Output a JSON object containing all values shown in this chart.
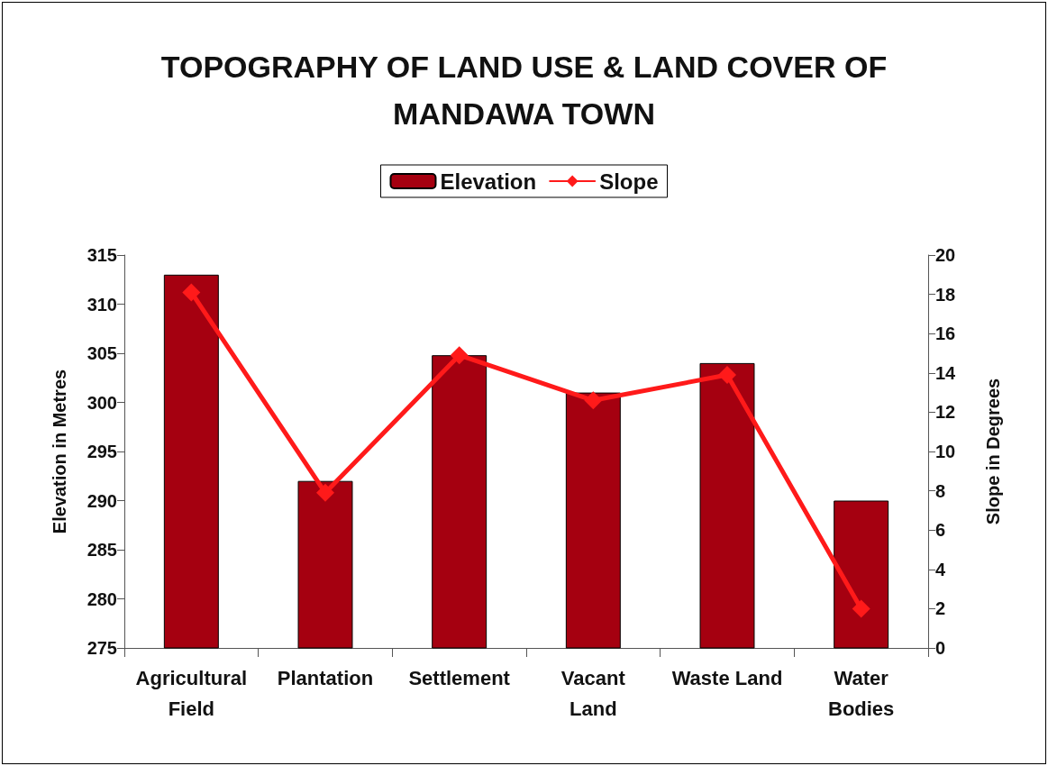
{
  "chart_data": {
    "type": "bar",
    "title": "TOPOGRAPHY OF LAND USE & LAND COVER OF\nMANDAWA TOWN",
    "categories": [
      "Agricultural\nField",
      "Plantation",
      "Settlement",
      "Vacant\nLand",
      "Waste Land",
      "Water\nBodies"
    ],
    "series": [
      {
        "name": "Elevation",
        "color": "#a50010",
        "values": [
          313,
          292,
          304.8,
          301,
          304,
          290
        ]
      },
      {
        "name": "Slope",
        "type": "line",
        "axis": "y2",
        "color": "#ff1a1a",
        "marker": "diamond",
        "values": [
          18.1,
          7.9,
          14.9,
          12.6,
          13.9,
          2.0
        ]
      }
    ],
    "ylabel": "Elevation in Metres",
    "y2label": "Slope in Degrees",
    "ylim": [
      275,
      315
    ],
    "yticks": [
      275,
      280,
      285,
      290,
      295,
      300,
      305,
      310,
      315
    ],
    "y2lim": [
      0,
      20
    ],
    "y2ticks": [
      0,
      2,
      4,
      6,
      8,
      10,
      12,
      14,
      16,
      18,
      20
    ],
    "grid": false,
    "legend": "top"
  }
}
